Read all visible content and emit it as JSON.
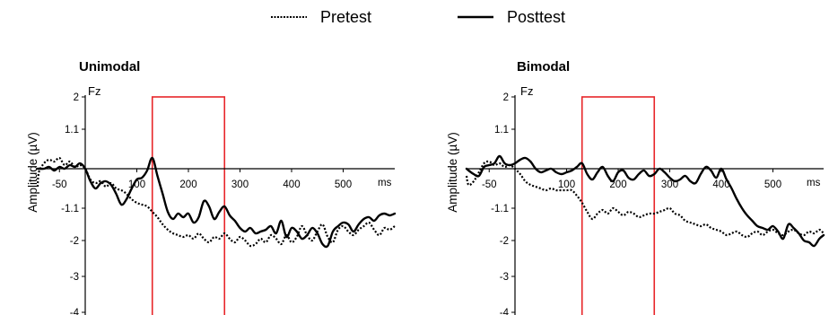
{
  "legend": [
    {
      "label": "Pretest",
      "style": "dotted"
    },
    {
      "label": "Posttest",
      "style": "solid"
    }
  ],
  "colors": {
    "trace": "#000000",
    "window": "#e8262a"
  },
  "chart_data": [
    {
      "type": "line",
      "title": "Unimodal",
      "channel": "Fz",
      "xlabel": "ms",
      "ylabel": "Amplitude (µV)",
      "xlim": [
        -100,
        600
      ],
      "ylim": [
        -4,
        2
      ],
      "x_ticks": [
        -50,
        100,
        200,
        300,
        400,
        500
      ],
      "y_ticks": [
        2,
        1.1,
        -1.1,
        -2,
        -3,
        -4
      ],
      "highlight_window": [
        130,
        270
      ],
      "series": [
        {
          "name": "Pretest",
          "style": "dotted",
          "x": [
            -100,
            -90,
            -80,
            -70,
            -60,
            -50,
            -40,
            -30,
            -20,
            -10,
            0,
            10,
            20,
            30,
            40,
            50,
            60,
            70,
            80,
            90,
            100,
            110,
            120,
            130,
            140,
            150,
            160,
            170,
            180,
            190,
            200,
            210,
            220,
            230,
            240,
            250,
            260,
            270,
            280,
            290,
            300,
            310,
            320,
            330,
            340,
            350,
            360,
            370,
            380,
            390,
            400,
            410,
            420,
            430,
            440,
            450,
            460,
            470,
            480,
            490,
            500,
            510,
            520,
            530,
            540,
            550,
            560,
            570,
            580,
            590,
            600
          ],
          "y": [
            -0.5,
            -0.1,
            0.15,
            0.25,
            0.2,
            0.3,
            0.1,
            0.2,
            0.05,
            0.1,
            0,
            -0.3,
            -0.4,
            -0.35,
            -0.5,
            -0.4,
            -0.55,
            -0.6,
            -0.7,
            -0.85,
            -0.95,
            -1.0,
            -1.05,
            -1.2,
            -1.35,
            -1.55,
            -1.7,
            -1.8,
            -1.85,
            -1.9,
            -1.85,
            -1.95,
            -1.8,
            -1.95,
            -2.05,
            -1.9,
            -1.95,
            -1.8,
            -1.95,
            -2.05,
            -1.9,
            -2.0,
            -2.15,
            -2.1,
            -1.95,
            -2.05,
            -1.85,
            -1.95,
            -2.1,
            -1.85,
            -2.05,
            -1.9,
            -1.6,
            -1.85,
            -2.0,
            -1.75,
            -1.55,
            -1.9,
            -2.05,
            -1.7,
            -1.6,
            -1.75,
            -1.85,
            -1.7,
            -1.6,
            -1.5,
            -1.7,
            -1.85,
            -1.65,
            -1.7,
            -1.6
          ]
        },
        {
          "name": "Posttest",
          "style": "solid",
          "x": [
            -100,
            -90,
            -80,
            -70,
            -60,
            -50,
            -40,
            -30,
            -20,
            -10,
            0,
            10,
            20,
            30,
            40,
            50,
            60,
            70,
            80,
            90,
            100,
            110,
            120,
            130,
            140,
            150,
            160,
            170,
            180,
            190,
            200,
            210,
            220,
            230,
            240,
            250,
            260,
            270,
            280,
            290,
            300,
            310,
            320,
            330,
            340,
            350,
            360,
            370,
            380,
            390,
            400,
            410,
            420,
            430,
            440,
            450,
            460,
            470,
            480,
            490,
            500,
            510,
            520,
            530,
            540,
            550,
            560,
            570,
            580,
            590,
            600
          ],
          "y": [
            0,
            0,
            0,
            0.05,
            -0.05,
            0.05,
            0,
            0.1,
            0.05,
            0.15,
            0,
            -0.35,
            -0.55,
            -0.4,
            -0.35,
            -0.45,
            -0.7,
            -1.0,
            -0.85,
            -0.55,
            -0.3,
            -0.25,
            -0.05,
            0.3,
            -0.2,
            -0.7,
            -1.2,
            -1.4,
            -1.25,
            -1.35,
            -1.25,
            -1.5,
            -1.35,
            -0.9,
            -1.05,
            -1.4,
            -1.2,
            -1.05,
            -1.3,
            -1.45,
            -1.65,
            -1.75,
            -1.65,
            -1.8,
            -1.75,
            -1.7,
            -1.6,
            -1.8,
            -1.45,
            -1.9,
            -1.65,
            -1.75,
            -1.95,
            -1.85,
            -1.65,
            -1.8,
            -2.1,
            -2.15,
            -1.75,
            -1.6,
            -1.5,
            -1.55,
            -1.75,
            -1.55,
            -1.4,
            -1.35,
            -1.45,
            -1.3,
            -1.25,
            -1.3,
            -1.25
          ]
        }
      ]
    },
    {
      "type": "line",
      "title": "Bimodal",
      "channel": "Fz",
      "xlabel": "ms",
      "ylabel": "Amplitude (µV)",
      "xlim": [
        -100,
        600
      ],
      "ylim": [
        -4,
        2
      ],
      "x_ticks": [
        -50,
        100,
        200,
        300,
        400,
        500
      ],
      "y_ticks": [
        2,
        1.1,
        -1.1,
        -2,
        -3,
        -4
      ],
      "highlight_window": [
        130,
        270
      ],
      "series": [
        {
          "name": "Pretest",
          "style": "dotted",
          "x": [
            -100,
            -90,
            -80,
            -70,
            -60,
            -50,
            -40,
            -30,
            -20,
            -10,
            0,
            10,
            20,
            30,
            40,
            50,
            60,
            70,
            80,
            90,
            100,
            110,
            120,
            130,
            140,
            150,
            160,
            170,
            180,
            190,
            200,
            210,
            220,
            230,
            240,
            250,
            260,
            270,
            280,
            290,
            300,
            310,
            320,
            330,
            340,
            350,
            360,
            370,
            380,
            390,
            400,
            410,
            420,
            430,
            440,
            450,
            460,
            470,
            480,
            490,
            500,
            510,
            520,
            530,
            540,
            550,
            560,
            570,
            580,
            590,
            600
          ],
          "y": [
            -0.2,
            -0.45,
            -0.35,
            -0.1,
            0.15,
            0.2,
            0.1,
            0.15,
            0.05,
            0.1,
            0,
            -0.15,
            -0.35,
            -0.45,
            -0.5,
            -0.55,
            -0.6,
            -0.55,
            -0.6,
            -0.6,
            -0.6,
            -0.6,
            -0.75,
            -0.95,
            -1.2,
            -1.4,
            -1.25,
            -1.15,
            -1.25,
            -1.1,
            -1.2,
            -1.3,
            -1.2,
            -1.25,
            -1.35,
            -1.3,
            -1.25,
            -1.25,
            -1.2,
            -1.15,
            -1.1,
            -1.25,
            -1.3,
            -1.45,
            -1.5,
            -1.55,
            -1.6,
            -1.55,
            -1.65,
            -1.7,
            -1.75,
            -1.85,
            -1.8,
            -1.75,
            -1.85,
            -1.9,
            -1.8,
            -1.75,
            -1.85,
            -1.75,
            -1.7,
            -1.8,
            -1.85,
            -1.75,
            -1.7,
            -1.8,
            -1.85,
            -1.75,
            -1.8,
            -1.7,
            -1.8
          ]
        },
        {
          "name": "Posttest",
          "style": "solid",
          "x": [
            -100,
            -90,
            -80,
            -70,
            -60,
            -50,
            -40,
            -30,
            -20,
            -10,
            0,
            10,
            20,
            30,
            40,
            50,
            60,
            70,
            80,
            90,
            100,
            110,
            120,
            130,
            140,
            150,
            160,
            170,
            180,
            190,
            200,
            210,
            220,
            230,
            240,
            250,
            260,
            270,
            280,
            290,
            300,
            310,
            320,
            330,
            340,
            350,
            360,
            370,
            380,
            390,
            400,
            410,
            420,
            430,
            440,
            450,
            460,
            470,
            480,
            490,
            500,
            510,
            520,
            530,
            540,
            550,
            560,
            570,
            580,
            590,
            600
          ],
          "y": [
            0,
            -0.05,
            -0.15,
            -0.2,
            0.05,
            0.1,
            0.15,
            0.35,
            0.15,
            0.1,
            0.15,
            0.25,
            0.3,
            0.2,
            0,
            -0.1,
            -0.05,
            0,
            -0.1,
            -0.15,
            -0.1,
            -0.05,
            0.05,
            0.15,
            -0.15,
            -0.3,
            -0.1,
            0.05,
            -0.2,
            -0.35,
            -0.1,
            -0.05,
            -0.25,
            -0.3,
            -0.15,
            -0.05,
            -0.2,
            -0.15,
            0,
            -0.1,
            -0.25,
            -0.35,
            -0.3,
            -0.2,
            -0.35,
            -0.4,
            -0.15,
            0.05,
            -0.05,
            -0.25,
            0,
            -0.3,
            -0.55,
            -0.85,
            -1.1,
            -1.3,
            -1.45,
            -1.6,
            -1.65,
            -1.7,
            -1.6,
            -1.75,
            -1.95,
            -1.55,
            -1.65,
            -1.8,
            -2.0,
            -2.05,
            -2.15,
            -1.95,
            -1.85
          ]
        }
      ]
    }
  ]
}
